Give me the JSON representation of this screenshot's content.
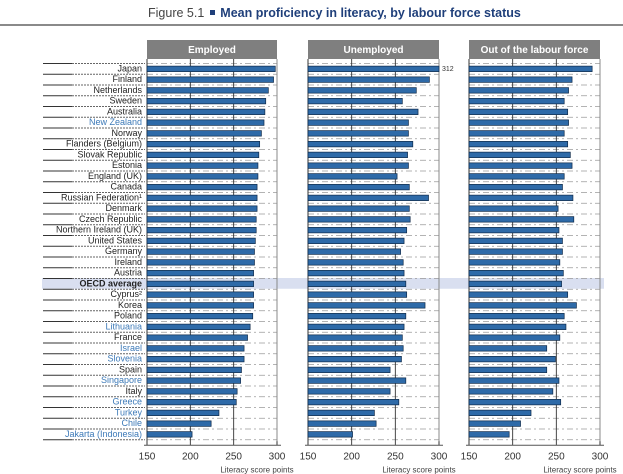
{
  "figure": {
    "number_label": "Figure 5.1",
    "title": "Mean proficiency in literacy, by labour force status"
  },
  "chart_data": {
    "type": "bar",
    "orientation": "horizontal",
    "title": "Mean proficiency in literacy, by labour force status",
    "xlabel": "Literacy score points",
    "xlim": [
      150,
      300
    ],
    "xticks": [
      150,
      200,
      250,
      300
    ],
    "grid": true,
    "highlight_category": "OECD average",
    "categories": [
      "Japan",
      "Finland",
      "Netherlands",
      "Sweden",
      "Australia",
      "New Zealand",
      "Norway",
      "Flanders (Belgium)",
      "Slovak Republic",
      "Estonia",
      "England (UK)",
      "Canada",
      "Russian Federation¹",
      "Denmark",
      "Czech Republic",
      "Northern Ireland (UK)",
      "United States",
      "Germany",
      "Ireland",
      "Austria",
      "OECD average",
      "Cyprus²",
      "Korea",
      "Poland",
      "Lithuania",
      "France",
      "Israel",
      "Slovenia",
      "Spain",
      "Singapore",
      "Italy",
      "Greece",
      "Turkey",
      "Chile",
      "Jakarta (Indonesia)"
    ],
    "partner_categories": [
      "New Zealand",
      "Lithuania",
      "Israel",
      "Slovenia",
      "Singapore",
      "Greece",
      "Turkey",
      "Chile",
      "Jakarta (Indonesia)"
    ],
    "series": [
      {
        "name": "Employed",
        "values": [
          298,
          296,
          290,
          287,
          286,
          285,
          282,
          280,
          279,
          278,
          278,
          277,
          277,
          277,
          276,
          276,
          275,
          274,
          274,
          273,
          273,
          273,
          273,
          272,
          269,
          266,
          262,
          262,
          259,
          258,
          254,
          253,
          233,
          224,
          202
        ]
      },
      {
        "name": "Unemployed",
        "values": [
          312,
          289,
          274,
          258,
          276,
          265,
          265,
          270,
          264,
          265,
          252,
          266,
          288,
          266,
          267,
          263,
          260,
          256,
          259,
          260,
          262,
          263,
          284,
          262,
          260,
          258,
          259,
          257,
          244,
          262,
          244,
          254,
          226,
          228,
          201
        ],
        "annotations": [
          {
            "category": "Japan",
            "label": "312"
          }
        ]
      },
      {
        "name": "Out of the labour force",
        "values": [
          291,
          268,
          264,
          259,
          263,
          264,
          259,
          263,
          266,
          268,
          259,
          257,
          269,
          252,
          270,
          253,
          257,
          257,
          254,
          258,
          256,
          263,
          273,
          259,
          261,
          254,
          239,
          249,
          239,
          253,
          246,
          255,
          221,
          209,
          196
        ]
      }
    ],
    "colors": {
      "bar": "#2e6aa8",
      "bar_edge": "#0f2a4a",
      "panel_header": "#7f7f7f",
      "highlight_band": "#d9dff0",
      "partner_label": "#3d7ab8",
      "oecd_label": "#000000",
      "title": "#1f3f7a"
    }
  }
}
